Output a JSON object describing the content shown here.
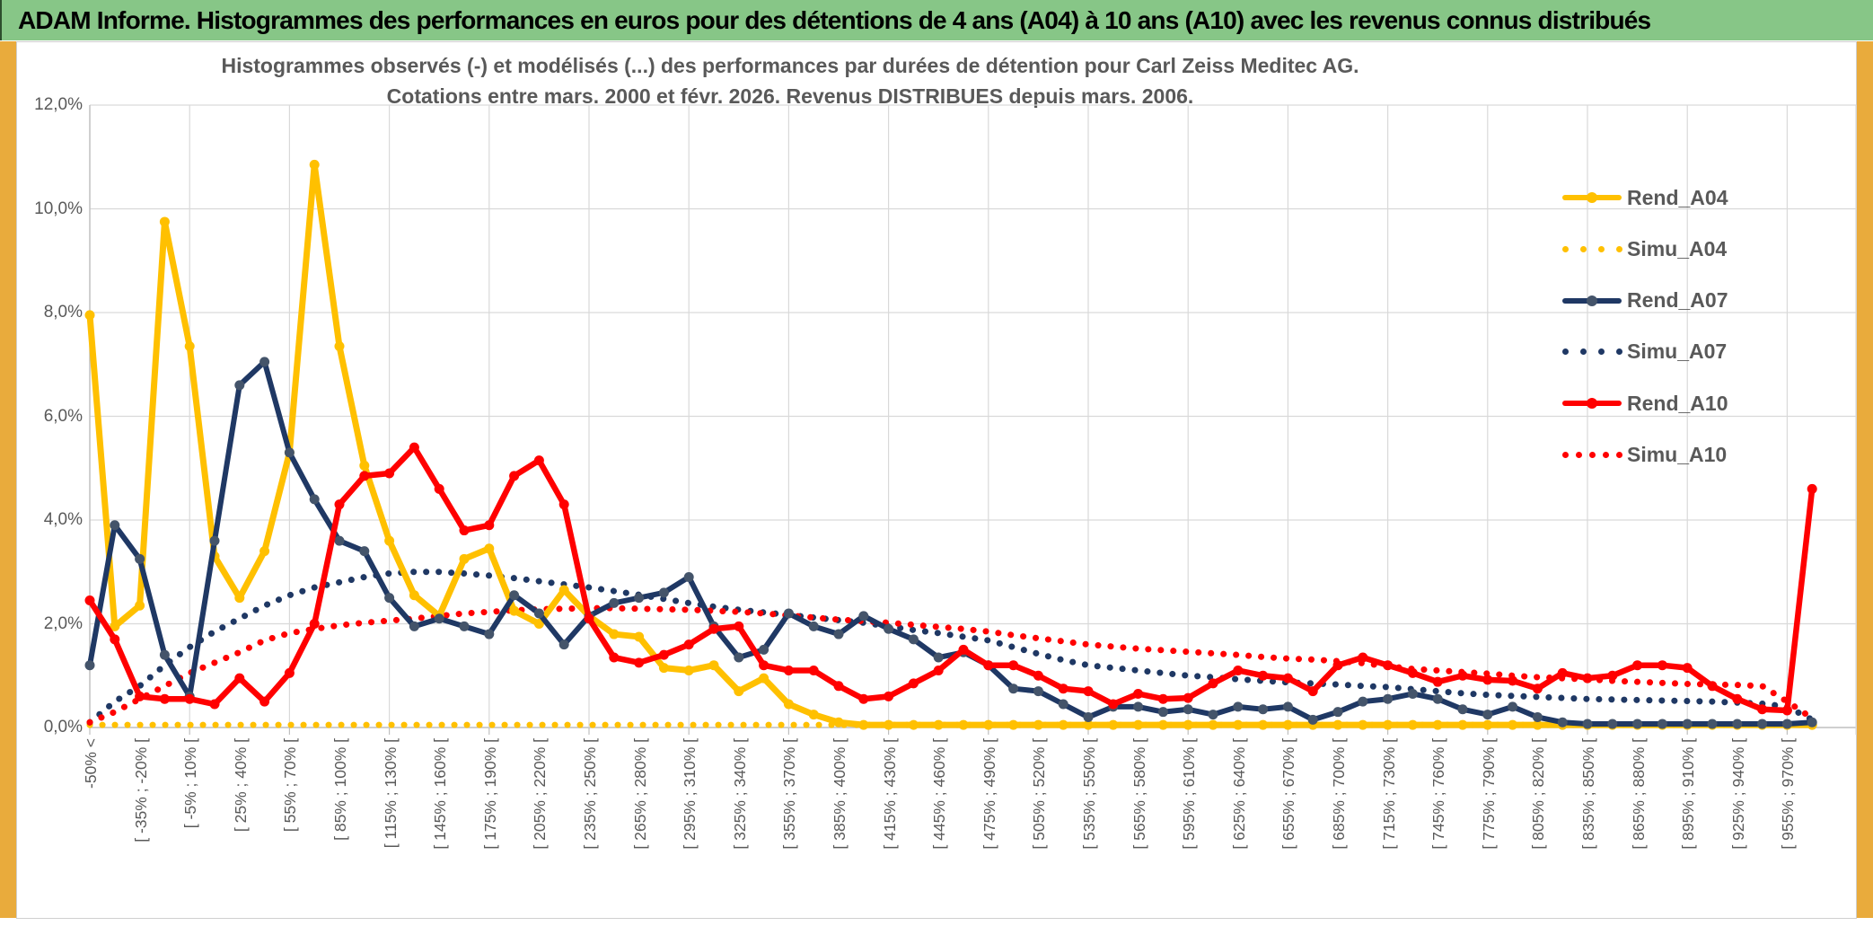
{
  "header": {
    "title": "ADAM Informe. Histogrammes des performances en euros pour des détentions de 4 ans (A04) à 10 ans (A10) avec les revenus connus distribués"
  },
  "colors": {
    "header_green": "#87C687",
    "accent_gold": "#E9AB3C",
    "text_grey": "#595959",
    "gridline": "#D9D9D9",
    "axis": "#BFBFBF",
    "series_yellow": "#FFC000",
    "series_navy": "#1F3864",
    "series_navy_marker": "#44546A",
    "series_red": "#FF0000"
  },
  "chart_data": {
    "type": "line",
    "title_line1": "Histogrammes observés (-) et modélisés (...) des performances par durées de détention pour Carl Zeiss Meditec AG.",
    "title_line2": "Cotations entre mars. 2000 et févr. 2026. Revenus DISTRIBUES depuis mars. 2006.",
    "ylim": [
      0,
      12
    ],
    "y_tick_step_pct": 2,
    "y_ticks": [
      "0,0%",
      "2,0%",
      "4,0%",
      "6,0%",
      "8,0%",
      "10,0%",
      "12,0%"
    ],
    "grid": true,
    "legend_position": "right-inside",
    "n_bins": 70,
    "x_label_every": 2,
    "x_labels": [
      "-50% <",
      "[ -35% ; -20% [",
      "[ -5% ; 10% [",
      "[ 25% ; 40% [",
      "[ 55% ; 70% [",
      "[ 85% ; 100% [",
      "[ 115% ; 130% [",
      "[ 145% ; 160% [",
      "[ 175% ; 190% [",
      "[ 205% ; 220% [",
      "[ 235% ; 250% [",
      "[ 265% ; 280% [",
      "[ 295% ; 310% [",
      "[ 325% ; 340% [",
      "[ 355% ; 370% [",
      "[ 385% ; 400% [",
      "[ 415% ; 430% [",
      "[ 445% ; 460% [",
      "[ 475% ; 490% [",
      "[ 505% ; 520% [",
      "[ 535% ; 550% [",
      "[ 565% ; 580% [",
      "[ 595% ; 610% [",
      "[ 625% ; 640% [",
      "[ 655% ; 670% [",
      "[ 685% ; 700% [",
      "[ 715% ; 730% [",
      "[ 745% ; 760% [",
      "[ 775% ; 790% [",
      "[ 805% ; 820% [",
      "[ 835% ; 850% [",
      "[ 865% ; 880% [",
      "[ 895% ; 910% [",
      "[ 925% ; 940% [",
      "[ 955% ; 970% ["
    ],
    "series": [
      {
        "name": "Rend_A04",
        "style": "solid",
        "color": "#FFC000",
        "marker_color": "#FFC000",
        "width": 7,
        "values": [
          7.95,
          1.95,
          2.35,
          9.75,
          7.35,
          3.3,
          2.5,
          3.4,
          5.3,
          10.85,
          7.35,
          5.05,
          3.6,
          2.55,
          2.15,
          3.25,
          3.45,
          2.25,
          2.0,
          2.65,
          2.15,
          1.8,
          1.75,
          1.15,
          1.1,
          1.2,
          0.7,
          0.95,
          0.45,
          0.25,
          0.1,
          0.05,
          0.05,
          0.05,
          0.05,
          0.05,
          0.05,
          0.05,
          0.05,
          0.05,
          0.05,
          0.05,
          0.05,
          0.05,
          0.05,
          0.05,
          0.05,
          0.05,
          0.05,
          0.05,
          0.05,
          0.05,
          0.05,
          0.05,
          0.05,
          0.05,
          0.05,
          0.05,
          0.05,
          0.05,
          0.05,
          0.05,
          0.05,
          0.05,
          0.05,
          0.05,
          0.05,
          0.05,
          0.05,
          0.05
        ]
      },
      {
        "name": "Simu_A04",
        "style": "dotted",
        "color": "#FFC000",
        "width": 7,
        "values": [
          0.05,
          0.05,
          0.05,
          0.05,
          0.05,
          0.05,
          0.05,
          0.05,
          0.05,
          0.05,
          0.05,
          0.05,
          0.05,
          0.05,
          0.05,
          0.05,
          0.05,
          0.05,
          0.05,
          0.05,
          0.05,
          0.05,
          0.05,
          0.05,
          0.05,
          0.05,
          0.05,
          0.05,
          0.05,
          0.05,
          0.05,
          0.05,
          0.05,
          0.05,
          0.05,
          0.05,
          0.05,
          0.05,
          0.05,
          0.05,
          0.05,
          0.05,
          0.05,
          0.05,
          0.05,
          0.05,
          0.05,
          0.05,
          0.05,
          0.05,
          0.05,
          0.05,
          0.05,
          0.05,
          0.05,
          0.05,
          0.05,
          0.05,
          0.05,
          0.05,
          0.05,
          0.05,
          0.05,
          0.05,
          0.05,
          0.05,
          0.05,
          0.05,
          0.05,
          0.05
        ]
      },
      {
        "name": "Rend_A07",
        "style": "solid",
        "color": "#1F3864",
        "marker_color": "#44546A",
        "width": 6,
        "values": [
          1.2,
          3.9,
          3.25,
          1.4,
          0.6,
          3.6,
          6.6,
          7.05,
          5.3,
          4.4,
          3.6,
          3.4,
          2.5,
          1.95,
          2.1,
          1.95,
          1.8,
          2.55,
          2.2,
          1.6,
          2.15,
          2.4,
          2.5,
          2.6,
          2.9,
          1.95,
          1.35,
          1.5,
          2.2,
          1.95,
          1.8,
          2.15,
          1.9,
          1.7,
          1.35,
          1.45,
          1.2,
          0.75,
          0.7,
          0.45,
          0.2,
          0.4,
          0.4,
          0.3,
          0.35,
          0.25,
          0.4,
          0.35,
          0.4,
          0.15,
          0.3,
          0.5,
          0.55,
          0.65,
          0.55,
          0.35,
          0.25,
          0.4,
          0.2,
          0.1,
          0.07,
          0.07,
          0.07,
          0.07,
          0.07,
          0.07,
          0.07,
          0.07,
          0.07,
          0.1
        ]
      },
      {
        "name": "Simu_A07",
        "style": "dotted",
        "color": "#1F3864",
        "width": 7,
        "values": [
          0.1,
          0.5,
          0.8,
          1.2,
          1.55,
          1.85,
          2.1,
          2.35,
          2.55,
          2.7,
          2.8,
          2.9,
          2.97,
          3.0,
          3.0,
          2.97,
          2.93,
          2.88,
          2.82,
          2.76,
          2.7,
          2.63,
          2.56,
          2.48,
          2.4,
          2.33,
          2.27,
          2.22,
          2.17,
          2.12,
          2.07,
          2.02,
          1.95,
          1.88,
          1.82,
          1.75,
          1.68,
          1.55,
          1.42,
          1.3,
          1.2,
          1.15,
          1.1,
          1.05,
          1.0,
          0.97,
          0.93,
          0.9,
          0.87,
          0.85,
          0.83,
          0.8,
          0.78,
          0.74,
          0.7,
          0.66,
          0.63,
          0.61,
          0.59,
          0.57,
          0.55,
          0.54,
          0.53,
          0.52,
          0.51,
          0.5,
          0.48,
          0.46,
          0.4,
          0.15
        ]
      },
      {
        "name": "Rend_A10",
        "style": "solid",
        "color": "#FF0000",
        "marker_color": "#FF0000",
        "width": 6.5,
        "values": [
          2.45,
          1.7,
          0.6,
          0.55,
          0.55,
          0.45,
          0.95,
          0.5,
          1.05,
          2.0,
          4.3,
          4.85,
          4.9,
          5.4,
          4.6,
          3.8,
          3.9,
          4.85,
          5.15,
          4.3,
          2.1,
          1.35,
          1.25,
          1.4,
          1.6,
          1.9,
          1.95,
          1.2,
          1.1,
          1.1,
          0.8,
          0.55,
          0.6,
          0.85,
          1.1,
          1.5,
          1.2,
          1.2,
          1.0,
          0.75,
          0.7,
          0.45,
          0.65,
          0.55,
          0.57,
          0.85,
          1.1,
          1.0,
          0.95,
          0.7,
          1.2,
          1.35,
          1.2,
          1.05,
          0.88,
          1.0,
          0.92,
          0.9,
          0.75,
          1.05,
          0.95,
          1.0,
          1.2,
          1.2,
          1.15,
          0.8,
          0.55,
          0.35,
          0.33,
          4.6
        ]
      },
      {
        "name": "Simu_A10",
        "style": "dotted",
        "color": "#FF0000",
        "width": 7,
        "values": [
          0.1,
          0.3,
          0.55,
          0.8,
          1.05,
          1.25,
          1.45,
          1.68,
          1.82,
          1.9,
          1.97,
          2.02,
          2.06,
          2.1,
          2.15,
          2.2,
          2.23,
          2.26,
          2.28,
          2.29,
          2.3,
          2.3,
          2.29,
          2.28,
          2.27,
          2.25,
          2.23,
          2.2,
          2.16,
          2.12,
          2.08,
          2.05,
          2.02,
          1.98,
          1.94,
          1.9,
          1.85,
          1.78,
          1.72,
          1.66,
          1.6,
          1.56,
          1.52,
          1.49,
          1.46,
          1.43,
          1.4,
          1.36,
          1.33,
          1.31,
          1.28,
          1.24,
          1.18,
          1.13,
          1.1,
          1.07,
          1.04,
          1.0,
          0.97,
          0.95,
          0.93,
          0.9,
          0.88,
          0.86,
          0.84,
          0.83,
          0.82,
          0.8,
          0.5,
          0.18
        ]
      }
    ]
  },
  "legend": {
    "items": [
      {
        "label": "Rend_A04",
        "sample": "solid",
        "color": "#FFC000",
        "marker_color": "#FFC000",
        "dot_count": 0
      },
      {
        "label": "Simu_A04",
        "sample": "dotted",
        "color": "#FFC000",
        "marker_color": "#FFC000",
        "dot_count": 4
      },
      {
        "label": "Rend_A07",
        "sample": "solid",
        "color": "#1F3864",
        "marker_color": "#44546A",
        "dot_count": 0
      },
      {
        "label": "Simu_A07",
        "sample": "dotted",
        "color": "#1F3864",
        "marker_color": "#1F3864",
        "dot_count": 4
      },
      {
        "label": "Rend_A10",
        "sample": "solid",
        "color": "#FF0000",
        "marker_color": "#FF0000",
        "dot_count": 0
      },
      {
        "label": "Simu_A10",
        "sample": "dotted",
        "color": "#FF0000",
        "marker_color": "#FF0000",
        "dot_count": 5
      }
    ]
  }
}
